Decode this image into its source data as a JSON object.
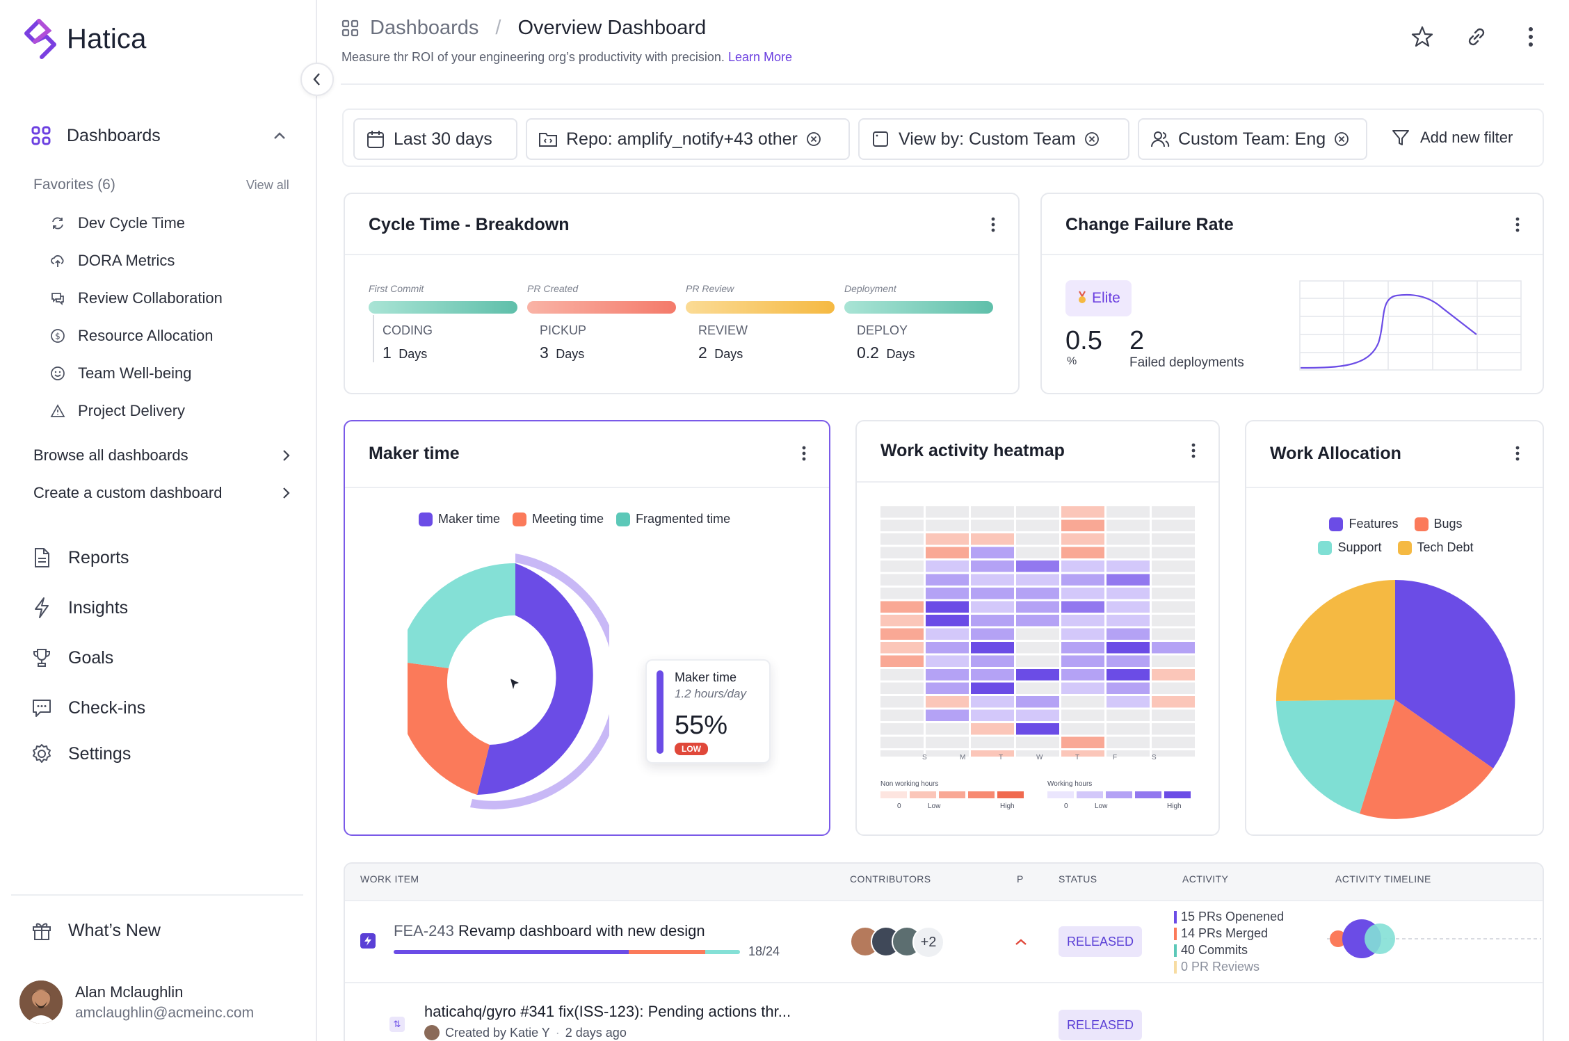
{
  "app": {
    "name": "Hatica"
  },
  "sidebar": {
    "dashboards_label": "Dashboards",
    "favorites_label": "Favorites (6)",
    "view_all": "View all",
    "favorites": [
      {
        "label": "Dev Cycle Time",
        "icon": "refresh-icon"
      },
      {
        "label": "DORA Metrics",
        "icon": "cloud-upload-icon"
      },
      {
        "label": "Review Collaboration",
        "icon": "chat-icon"
      },
      {
        "label": "Resource Allocation",
        "icon": "dollar-circle-icon"
      },
      {
        "label": "Team Well-being",
        "icon": "smile-icon"
      },
      {
        "label": "Project Delivery",
        "icon": "warning-triangle-icon"
      }
    ],
    "browse_all": "Browse all dashboards",
    "create_custom": "Create a custom dashboard",
    "nav": [
      {
        "label": "Reports",
        "icon": "document-icon"
      },
      {
        "label": "Insights",
        "icon": "lightning-icon"
      },
      {
        "label": "Goals",
        "icon": "trophy-icon"
      },
      {
        "label": "Check-ins",
        "icon": "message-icon"
      },
      {
        "label": "Settings",
        "icon": "gear-icon"
      }
    ],
    "whats_new": "What’s New",
    "user": {
      "name": "Alan Mclaughlin",
      "email": "amclaughlin@acmeinc.com"
    }
  },
  "header": {
    "breadcrumb_root": "Dashboards",
    "breadcrumb_sep": "/",
    "title": "Overview Dashboard",
    "subtitle": "Measure thr ROI of your engineering org’s productivity with precision.",
    "learn_more": "Learn More"
  },
  "filters": {
    "date": "Last 30 days",
    "repo": "Repo: amplify_notify+43 other",
    "view_by": "View by: Custom Team",
    "team": "Custom Team: Eng",
    "add": "Add new filter"
  },
  "cycle_time": {
    "title": "Cycle Time -  Breakdown",
    "stages": [
      {
        "stage": "First Commit",
        "name": "CODING",
        "value": "1",
        "unit": "Days",
        "color": "#5fbfaa"
      },
      {
        "stage": "PR Created",
        "name": "PICKUP",
        "value": "3",
        "unit": "Days",
        "color": "#f47a6a"
      },
      {
        "stage": "PR Review",
        "name": "REVIEW",
        "value": "2",
        "unit": "Days",
        "color": "#f5b942"
      },
      {
        "stage": "Deployment",
        "name": "DEPLOY",
        "value": "0.2",
        "unit": "Days",
        "color": "#5fbfaa"
      }
    ]
  },
  "cfr": {
    "title": "Change Failure Rate",
    "badge": "Elite",
    "rate": "0.5",
    "rate_unit": "%",
    "failed": "2",
    "failed_label": "Failed deployments"
  },
  "maker": {
    "title": "Maker time",
    "legend": [
      {
        "name": "Maker time",
        "color": "#6b4ce6"
      },
      {
        "name": "Meeting time",
        "color": "#fb7a5a"
      },
      {
        "name": "Fragmented time",
        "color": "#5cc8b8"
      }
    ],
    "tooltip": {
      "label": "Maker time",
      "sub": "1.2 hours/day",
      "value": "55%",
      "badge": "LOW"
    }
  },
  "heatmap": {
    "title": "Work activity heatmap",
    "days": [
      "S",
      "M",
      "T",
      "W",
      "T",
      "F",
      "S"
    ],
    "legend_non": "Non working hours",
    "legend_work": "Working hours",
    "l0": "0",
    "llow": "Low",
    "lhigh": "High"
  },
  "allocation": {
    "title": "Work Allocation",
    "legend": [
      {
        "name": "Features",
        "color": "#6b4ce6"
      },
      {
        "name": "Bugs",
        "color": "#fb7a5a"
      },
      {
        "name": "Support",
        "color": "#7fdfd4"
      },
      {
        "name": "Tech Debt",
        "color": "#f5b942"
      }
    ]
  },
  "table": {
    "headers": [
      "WORK ITEM",
      "CONTRIBUTORS",
      "P",
      "STATUS",
      "ACTIVITY",
      "ACTIVITY TIMELINE"
    ],
    "row1": {
      "id": "FEA-243",
      "title": "Revamp dashboard with new design",
      "progress": "18/24",
      "extra": "+2",
      "status": "RELEASED",
      "activity": [
        {
          "text": "15 PRs Openened",
          "color": "#6b4ce6"
        },
        {
          "text": "14 PRs Merged",
          "color": "#fb7a5a"
        },
        {
          "text": "40 Commits",
          "color": "#5cc8b8"
        },
        {
          "text": "0 PR Reviews",
          "color": "#f7dca2"
        }
      ]
    },
    "row2": {
      "title": "haticahq/gyro #341 fix(ISS-123): Pending actions thr...",
      "created_by": "Created by Katie Y",
      "time": "2 days ago",
      "status": "RELEASED"
    }
  }
}
